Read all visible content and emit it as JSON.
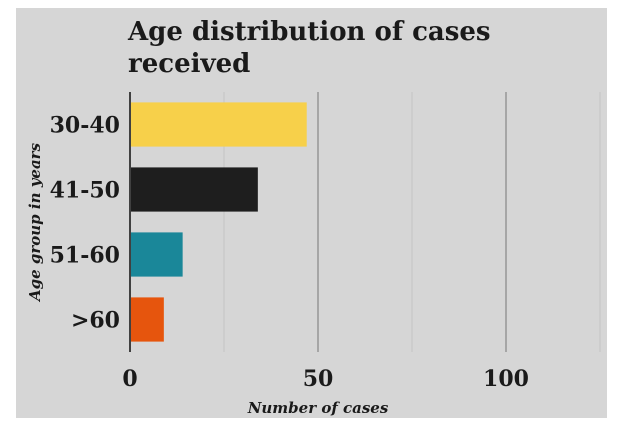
{
  "chart_data": {
    "type": "bar",
    "orientation": "horizontal",
    "title": "Age distribution of cases received",
    "xlabel": "Number of cases",
    "ylabel": "Age group in years",
    "categories": [
      "30-40",
      "41-50",
      "51-60",
      ">60"
    ],
    "values": [
      47,
      34,
      14,
      9
    ],
    "colors": [
      "#f7d04a",
      "#1e1e1e",
      "#1a8799",
      "#e6550d"
    ],
    "xlim": [
      0,
      125
    ],
    "xticks": [
      0,
      50,
      100
    ],
    "xtick_labels": [
      "0",
      "50",
      "100"
    ],
    "grid": true,
    "legend": "none"
  }
}
